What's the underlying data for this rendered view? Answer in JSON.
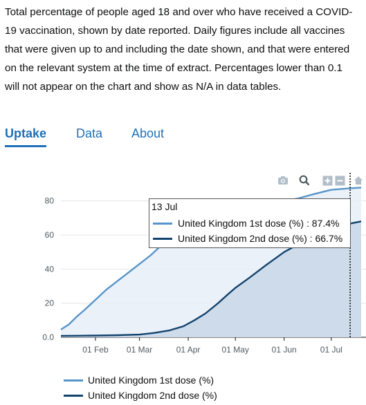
{
  "description": "Total percentage of people aged 18 and over who have received a COVID-19 vaccination, shown by date reported. Daily figures include all vaccines that were given up to and including the date shown, and that were entered on the relevant system at the time of extract. Percentages lower than 0.1 will not appear on the chart and show as N/A in data tables.",
  "tabs": [
    {
      "label": "Uptake",
      "active": true
    },
    {
      "label": "Data",
      "active": false
    },
    {
      "label": "About",
      "active": false
    }
  ],
  "modebar": {
    "icons": [
      "camera-icon",
      "zoom-icon",
      "zoom-in-icon",
      "zoom-out-icon",
      "home-icon"
    ]
  },
  "tooltip": {
    "date": "13 Jul",
    "rows": [
      {
        "text": "United Kingdom 1st dose (%) : 87.4%",
        "color": "#5694ca"
      },
      {
        "text": "United Kingdom 2nd dose (%) : 66.7%",
        "color": "#12436d"
      }
    ]
  },
  "legend": [
    {
      "label": "United Kingdom 1st dose (%)",
      "color": "#5694ca"
    },
    {
      "label": "United Kingdom 2nd dose (%)",
      "color": "#12436d"
    }
  ],
  "chart_data": {
    "type": "area",
    "title": "",
    "xlabel": "",
    "ylabel": "",
    "x_range": [
      "2021-01-10",
      "2021-07-20"
    ],
    "ylim": [
      0,
      90
    ],
    "yticks": [
      0,
      20,
      40,
      60,
      80
    ],
    "ytick_labels": [
      "0.0",
      "20",
      "40",
      "60",
      "80"
    ],
    "xticks": [
      "2021-02-01",
      "2021-03-01",
      "2021-04-01",
      "2021-05-01",
      "2021-06-01",
      "2021-07-01"
    ],
    "xtick_labels": [
      "01 Feb",
      "01 Mar",
      "01 Apr",
      "01 May",
      "01 Jun",
      "01 Jul"
    ],
    "grid": "horizontal",
    "hover_date": "2021-07-13",
    "series": [
      {
        "name": "United Kingdom 1st dose (%)",
        "color": "#5694ca",
        "fill": "#e8eff8",
        "x": [
          "2021-01-10",
          "2021-01-15",
          "2021-01-20",
          "2021-01-25",
          "2021-02-01",
          "2021-02-08",
          "2021-02-15",
          "2021-02-22",
          "2021-03-01",
          "2021-03-08",
          "2021-03-15",
          "2021-03-22",
          "2021-03-29",
          "2021-04-05",
          "2021-04-15",
          "2021-04-25",
          "2021-05-01",
          "2021-05-15",
          "2021-05-25",
          "2021-06-01",
          "2021-06-10",
          "2021-06-20",
          "2021-07-01",
          "2021-07-13",
          "2021-07-20"
        ],
        "y": [
          4.5,
          7.5,
          12,
          16,
          22,
          28,
          33,
          38,
          43,
          48,
          54,
          61,
          66,
          70,
          72,
          73,
          74,
          77,
          79,
          80,
          81.5,
          84,
          86.5,
          87.4,
          87.8
        ]
      },
      {
        "name": "United Kingdom 2nd dose (%)",
        "color": "#12436d",
        "fill": "#c9d7e8",
        "x": [
          "2021-01-10",
          "2021-01-20",
          "2021-02-01",
          "2021-02-15",
          "2021-03-01",
          "2021-03-10",
          "2021-03-20",
          "2021-03-29",
          "2021-04-05",
          "2021-04-12",
          "2021-04-20",
          "2021-04-26",
          "2021-05-01",
          "2021-05-10",
          "2021-05-20",
          "2021-06-01",
          "2021-06-10",
          "2021-06-20",
          "2021-07-01",
          "2021-07-13",
          "2021-07-20"
        ],
        "y": [
          0.8,
          0.9,
          1.0,
          1.2,
          1.6,
          2.5,
          4.0,
          6.5,
          10,
          14,
          20,
          25,
          29,
          35,
          42,
          50,
          54.5,
          59,
          63,
          66.7,
          68
        ]
      }
    ]
  }
}
